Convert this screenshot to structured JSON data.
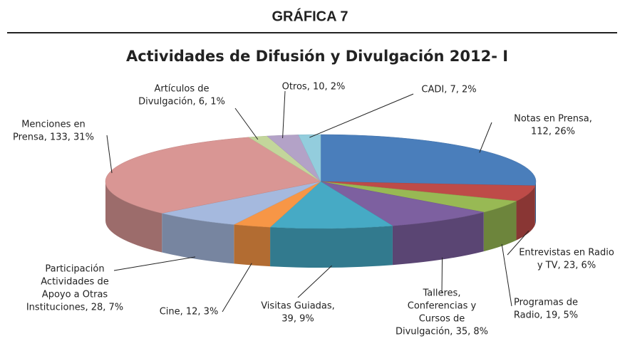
{
  "header": {
    "title": "GRÁFICA 7"
  },
  "chart_data": {
    "type": "pie3d",
    "title": "Actividades de Difusión y Divulgación 2012- I",
    "values": [
      112,
      23,
      19,
      35,
      39,
      12,
      28,
      133,
      6,
      10,
      7
    ],
    "value_labels": [
      [
        "Notas en Prensa,",
        "112, 26%"
      ],
      [
        "Entrevistas en Radio",
        "y TV, 23, 6%"
      ],
      [
        "Programas de",
        "Radio, 19, 5%"
      ],
      [
        "Talleres,",
        "Conferencias y",
        "Cursos de",
        "Divulgación, 35, 8%"
      ],
      [
        "Visitas Guiadas,",
        "39, 9%"
      ],
      [
        "Cine, 12, 3%"
      ],
      [
        "Participación",
        "Actividades de",
        "Apoyo a Otras",
        "Instituciones, 28, 7%"
      ],
      [
        "Menciones en",
        "Prensa, 133, 31%"
      ],
      [
        "Artículos de",
        "Divulgación, 6, 1%"
      ],
      [
        "Otros, 10, 2%"
      ],
      [
        "CADI, 7, 2%"
      ]
    ],
    "colors": [
      "#4a7ebb",
      "#be4b48",
      "#98b954",
      "#7d60a0",
      "#46aac5",
      "#f79646",
      "#a5b9de",
      "#d99694",
      "#c3d69b",
      "#b3a2c7",
      "#93cddd"
    ]
  }
}
